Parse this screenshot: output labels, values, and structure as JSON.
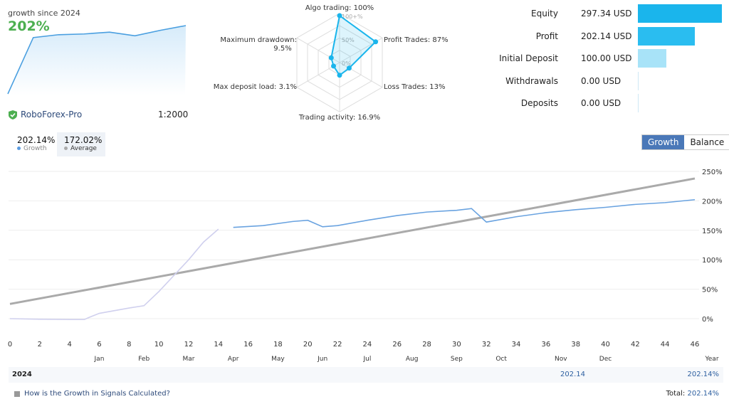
{
  "summary": {
    "growth_label": "growth since 2024",
    "growth_value": "202%",
    "broker": "RoboForex-Pro",
    "leverage": "1:2000"
  },
  "mini_chart": {
    "values": [
      0,
      155,
      163,
      165,
      170,
      160,
      175,
      188
    ]
  },
  "radar": {
    "items": [
      {
        "label": "Algo trading: 100%",
        "value": 100
      },
      {
        "label": "Profit Trades: 87%",
        "value": 87
      },
      {
        "label": "Loss Trades: 13%",
        "value": 13
      },
      {
        "label": "Trading activity: 16.9%",
        "value": 16.9
      },
      {
        "label": "Max deposit load: 3.1%",
        "value": 3.1
      },
      {
        "label": "Maximum drawdown:",
        "label2": "9.5%",
        "value": 9.5
      }
    ],
    "scale": [
      "100+%",
      "50%",
      "0%"
    ]
  },
  "balance": {
    "rows": [
      {
        "label": "Equity",
        "value": "297.34 USD",
        "amount": 297.34,
        "color": "#1ab5ec"
      },
      {
        "label": "Profit",
        "value": "202.14 USD",
        "amount": 202.14,
        "color": "#2abdf0"
      },
      {
        "label": "Initial Deposit",
        "value": "100.00 USD",
        "amount": 100,
        "color": "#a8e3f8"
      },
      {
        "label": "Withdrawals",
        "value": "0.00 USD",
        "amount": 0,
        "color": "#cfe8f5"
      },
      {
        "label": "Deposits",
        "value": "0.00 USD",
        "amount": 0,
        "color": "#cfe8f5"
      }
    ]
  },
  "stats": {
    "growth": {
      "value": "202.14%",
      "label": "Growth"
    },
    "average": {
      "value": "172.02%",
      "label": "Average"
    }
  },
  "toggle": {
    "growth": "Growth",
    "balance": "Balance"
  },
  "chart_data": {
    "type": "line",
    "x_ticks": [
      0,
      2,
      4,
      6,
      8,
      10,
      12,
      14,
      16,
      18,
      20,
      22,
      24,
      26,
      28,
      30,
      32,
      34,
      36,
      38,
      40,
      42,
      44,
      46
    ],
    "y_ticks": [
      "250%",
      "200%",
      "150%",
      "100%",
      "50%",
      "0%"
    ],
    "ylim": [
      -25,
      250
    ],
    "xlim": [
      0,
      46
    ],
    "months": [
      {
        "m": "Jan",
        "x": 6
      },
      {
        "m": "Feb",
        "x": 9
      },
      {
        "m": "Mar",
        "x": 12
      },
      {
        "m": "Apr",
        "x": 15
      },
      {
        "m": "May",
        "x": 18
      },
      {
        "m": "Jun",
        "x": 21
      },
      {
        "m": "Jul",
        "x": 24
      },
      {
        "m": "Aug",
        "x": 27
      },
      {
        "m": "Sep",
        "x": 30
      },
      {
        "m": "Oct",
        "x": 33
      },
      {
        "m": "Nov",
        "x": 37
      },
      {
        "m": "Dec",
        "x": 40
      }
    ],
    "xlabel": "Year",
    "series": [
      {
        "name": "Growth",
        "color": "#6aa3e0",
        "x": [
          0,
          2,
          4,
          5,
          5.3,
          6,
          8,
          9,
          10,
          12,
          13,
          14,
          15,
          17,
          19,
          20,
          21,
          22,
          24,
          26,
          28,
          30,
          31,
          32,
          34,
          36,
          38,
          40,
          42,
          44,
          46
        ],
        "y": [
          0,
          -1,
          -1.5,
          -1.5,
          2,
          9,
          18,
          22,
          46,
          100,
          130,
          152,
          155,
          158,
          165,
          167,
          156,
          158,
          167,
          175,
          181,
          184,
          187,
          164,
          173,
          180,
          185,
          189,
          194,
          197,
          202
        ]
      },
      {
        "name": "Average",
        "color": "#aaaaaa",
        "x": [
          0,
          46
        ],
        "y": [
          25,
          238
        ]
      }
    ]
  },
  "footer": {
    "year": "2024",
    "mid_value": "202.14",
    "row_total": "202.14%",
    "link": "How is the Growth in Signals Calculated?",
    "total_label": "Total:",
    "total_value": "202.14%"
  }
}
